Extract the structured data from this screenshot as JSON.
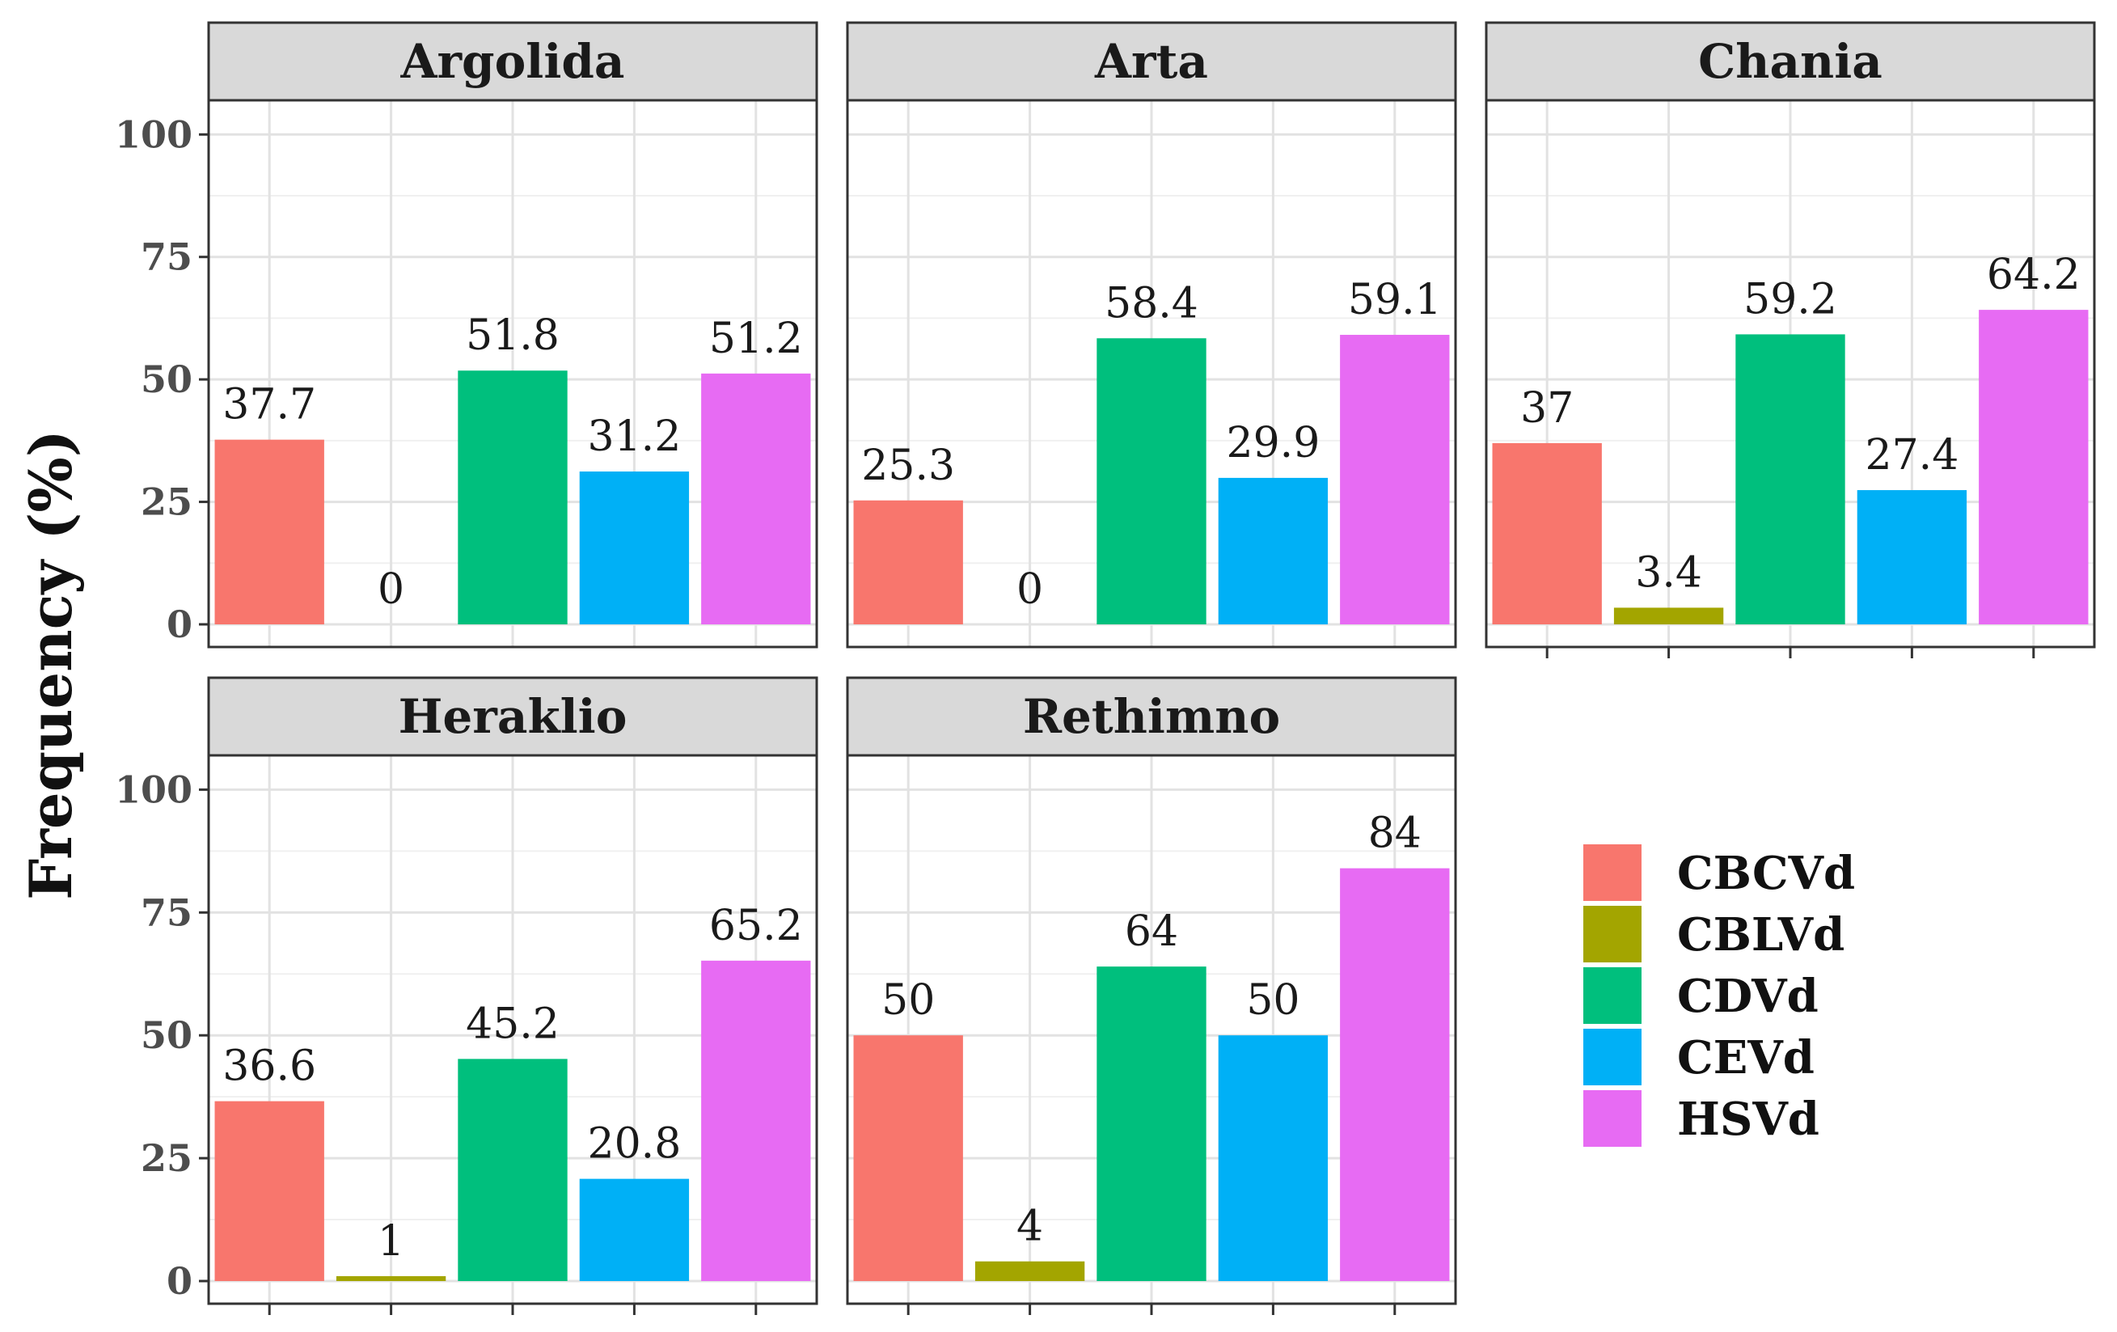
{
  "chart_data": {
    "type": "bar",
    "facet_layout": "3 columns x 2 rows",
    "ylabel": "Frequency (%)",
    "xlabel": "",
    "ylim": [
      0,
      105
    ],
    "yticks": [
      0,
      25,
      50,
      75,
      100
    ],
    "grid": true,
    "legend_position": "right",
    "categories": [
      "CBCVd",
      "CBLVd",
      "CDVd",
      "CEVd",
      "HSVd"
    ],
    "colors": [
      "#F8766D",
      "#A3A500",
      "#00BF7D",
      "#00B0F6",
      "#E76BF3"
    ],
    "panels": [
      {
        "name": "Argolida",
        "values": [
          37.7,
          0,
          51.8,
          31.2,
          51.2
        ],
        "labels": [
          "37.7",
          "0",
          "51.8",
          "31.2",
          "51.2"
        ]
      },
      {
        "name": "Arta",
        "values": [
          25.3,
          0,
          58.4,
          29.9,
          59.1
        ],
        "labels": [
          "25.3",
          "0",
          "58.4",
          "29.9",
          "59.1"
        ]
      },
      {
        "name": "Chania",
        "values": [
          37,
          3.4,
          59.2,
          27.4,
          64.2
        ],
        "labels": [
          "37",
          "3.4",
          "59.2",
          "27.4",
          "64.2"
        ]
      },
      {
        "name": "Heraklio",
        "values": [
          36.6,
          1,
          45.2,
          20.8,
          65.2
        ],
        "labels": [
          "36.6",
          "1",
          "45.2",
          "20.8",
          "65.2"
        ]
      },
      {
        "name": "Rethimno",
        "values": [
          50,
          4,
          64,
          50,
          84
        ],
        "labels": [
          "50",
          "4",
          "64",
          "50",
          "84"
        ]
      }
    ]
  }
}
